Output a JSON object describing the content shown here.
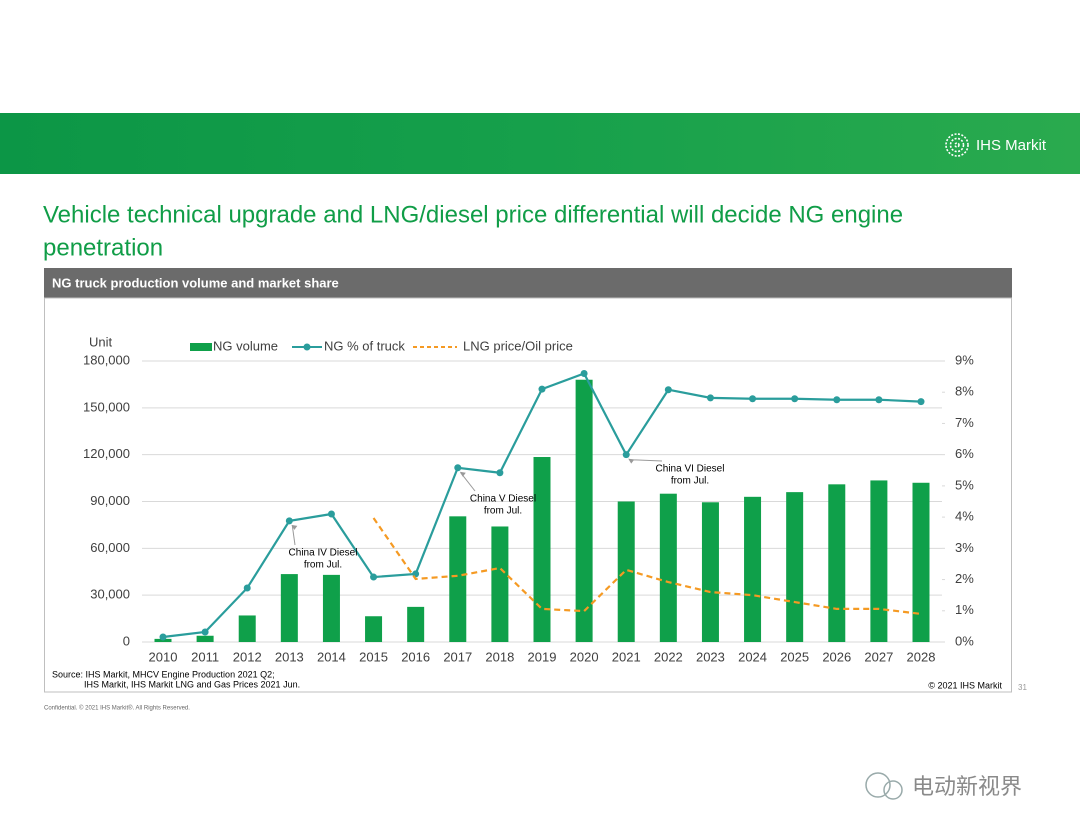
{
  "slide": {
    "title_lines": [
      "Vehicle technical upgrade and LNG/diesel price differential will decide NG engine",
      "penetration"
    ],
    "logo": "IHS Markit",
    "page_number": "31",
    "confidential": "Confidential. © 2021 IHS Markit®. All Rights Reserved.",
    "watermark": "电动新视界"
  },
  "chart_data": {
    "type": "bar-line",
    "title": "NG truck production volume and market share",
    "y_label": "Unit",
    "categories": [
      "2010",
      "2011",
      "2012",
      "2013",
      "2014",
      "2015",
      "2016",
      "2017",
      "2018",
      "2019",
      "2020",
      "2021",
      "2022",
      "2023",
      "2024",
      "2025",
      "2026",
      "2027",
      "2028"
    ],
    "series": [
      {
        "name": "NG volume",
        "type": "bar",
        "color": "#0fa04a",
        "values": [
          2000,
          4000,
          17000,
          43500,
          43000,
          16500,
          22500,
          80500,
          74000,
          118500,
          168000,
          90000,
          95000,
          89500,
          93000,
          96000,
          101000,
          103500,
          102000
        ]
      },
      {
        "name": "NG % of truck",
        "type": "line",
        "axis": "y2",
        "color": "#2a9d9c",
        "marker": true,
        "values": [
          0.16,
          0.32,
          1.73,
          3.88,
          4.1,
          2.08,
          2.18,
          5.58,
          5.42,
          8.1,
          8.6,
          6.0,
          8.08,
          7.82,
          7.79,
          7.79,
          7.76,
          7.76,
          7.7
        ]
      },
      {
        "name": "LNG price/Oil price",
        "type": "line",
        "axis": "y2",
        "color": "#f59a23",
        "dashed": true,
        "values": [
          null,
          null,
          null,
          null,
          null,
          3.97,
          2.02,
          2.12,
          2.37,
          1.06,
          0.99,
          2.31,
          1.92,
          1.6,
          1.5,
          1.28,
          1.06,
          1.06,
          0.9
        ]
      }
    ],
    "ylim": [
      0,
      180000
    ],
    "yticks": [
      0,
      {
        "value": 30000,
        "label": "30,000"
      },
      {
        "value": 60000,
        "label": "60,000"
      },
      {
        "value": 90000,
        "label": "90,000"
      },
      {
        "value": 120000,
        "label": "120,000"
      },
      {
        "value": 150000,
        "label": "150,000"
      },
      {
        "value": 180000,
        "label": "180,000"
      }
    ],
    "y2lim": [
      0,
      9
    ],
    "y2ticks": [
      {
        "value": 0,
        "label": "0%"
      },
      {
        "value": 1,
        "label": "1%"
      },
      {
        "value": 2,
        "label": "2%"
      },
      {
        "value": 3,
        "label": "3%"
      },
      {
        "value": 4,
        "label": "4%"
      },
      {
        "value": 5,
        "label": "5%"
      },
      {
        "value": 6,
        "label": "6%"
      },
      {
        "value": 7,
        "label": "7%"
      },
      {
        "value": 8,
        "label": "8%"
      },
      {
        "value": 9,
        "label": "9%"
      }
    ],
    "grid": true,
    "annotations": [
      {
        "lines": [
          "China IV Diesel",
          "from Jul."
        ]
      },
      {
        "lines": [
          "China V Diesel",
          "from Jul."
        ]
      },
      {
        "lines": [
          "China VI Diesel",
          "from Jul."
        ]
      }
    ],
    "source_lines": [
      "Source: IHS Markit, MHCV Engine Production 2021 Q2;",
      "IHS Markit, IHS Markit LNG and Gas Prices 2021 Jun."
    ],
    "copyright": "© 2021 IHS Markit"
  }
}
